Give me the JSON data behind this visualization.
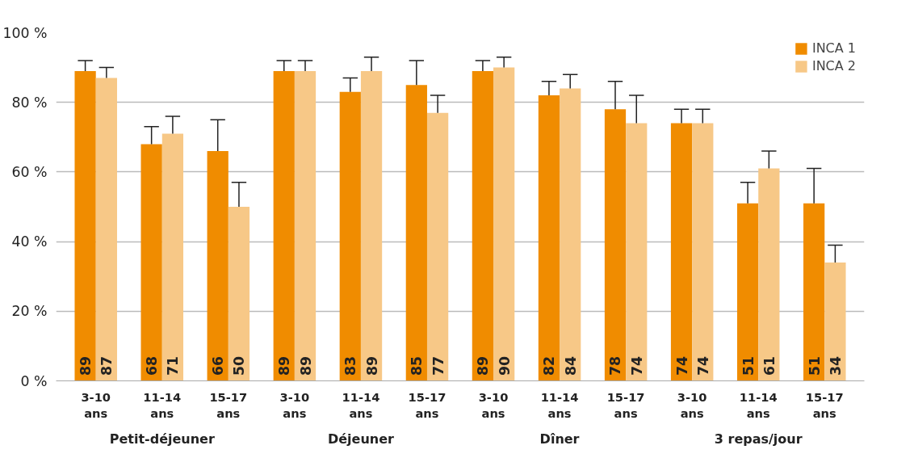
{
  "chart_data": {
    "type": "bar",
    "categories": [
      "3-10 ans",
      "11-14 ans",
      "15-17 ans",
      "3-10 ans",
      "11-14 ans",
      "15-17 ans",
      "3-10 ans",
      "11-14 ans",
      "15-17 ans",
      "3-10 ans",
      "11-14 ans",
      "15-17 ans"
    ],
    "series": [
      {
        "name": "INCA 1",
        "color": "#f08c00",
        "values": [
          89,
          68,
          66,
          89,
          83,
          85,
          89,
          82,
          78,
          74,
          51,
          51
        ],
        "errors": [
          [
            89,
            92
          ],
          [
            68,
            73
          ],
          [
            66,
            75
          ],
          [
            89,
            92
          ],
          [
            83,
            87
          ],
          [
            85,
            92
          ],
          [
            89,
            92
          ],
          [
            82,
            86
          ],
          [
            78,
            86
          ],
          [
            74,
            78
          ],
          [
            51,
            57
          ],
          [
            51,
            61
          ]
        ]
      },
      {
        "name": "INCA 2",
        "color": "#f7c887",
        "values": [
          87,
          71,
          50,
          89,
          89,
          77,
          90,
          84,
          74,
          74,
          61,
          34
        ],
        "errors": [
          [
            87,
            90
          ],
          [
            71,
            76
          ],
          [
            50,
            57
          ],
          [
            89,
            92
          ],
          [
            89,
            93
          ],
          [
            77,
            82
          ],
          [
            90,
            93
          ],
          [
            84,
            88
          ],
          [
            74,
            82
          ],
          [
            74,
            78
          ],
          [
            61,
            66
          ],
          [
            34,
            39
          ]
        ]
      }
    ],
    "annotations": [
      "Petit-déjeuner",
      "Déjeuner",
      "Dîner",
      "3 repas/jour"
    ],
    "ylim": [
      0,
      100
    ],
    "yticks": [
      {
        "value": 0,
        "label": "0 %"
      },
      {
        "value": 20,
        "label": "20 %"
      },
      {
        "value": 40,
        "label": "40 %"
      },
      {
        "value": 60,
        "label": "60 %"
      },
      {
        "value": 80,
        "label": "80 %"
      },
      {
        "value": 100,
        "label": "100 %"
      }
    ],
    "grid": "y",
    "legend": "top right",
    "data_labels": true
  }
}
